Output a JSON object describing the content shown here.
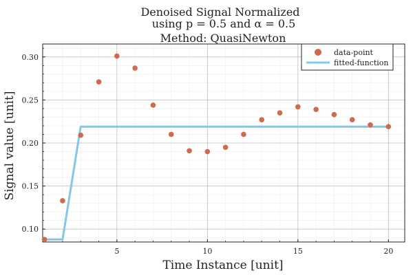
{
  "chart_data": {
    "type": "scatter",
    "title_lines": [
      "Denoised Signal  Normalized",
      "using p = 0.5 and α = 0.5",
      "Method: QuasiNewton"
    ],
    "xlabel": "Time Instance [unit]",
    "ylabel": "Signal value [unit]",
    "xlim": [
      0.9,
      20.9
    ],
    "ylim": [
      0.085,
      0.315
    ],
    "xticks": [
      5,
      10,
      15,
      20
    ],
    "yticks": [
      0.1,
      0.15,
      0.2,
      0.25,
      0.3
    ],
    "ytick_labels": [
      "0.10",
      "0.15",
      "0.20",
      "0.25",
      "0.30"
    ],
    "grid": true,
    "legend_position": "top-right",
    "series": [
      {
        "name": "data-point",
        "kind": "scatter",
        "color": "#d2694b",
        "x": [
          1,
          2,
          3,
          4,
          5,
          6,
          7,
          8,
          9,
          10,
          11,
          12,
          13,
          14,
          15,
          16,
          17,
          18,
          19,
          20
        ],
        "y": [
          0.088,
          0.133,
          0.209,
          0.271,
          0.301,
          0.287,
          0.244,
          0.21,
          0.191,
          0.19,
          0.195,
          0.21,
          0.227,
          0.235,
          0.242,
          0.239,
          0.233,
          0.227,
          0.221,
          0.219
        ]
      },
      {
        "name": "fitted-function",
        "kind": "line",
        "color": "#7fc8ee",
        "x": [
          0.9,
          1,
          2,
          3,
          4,
          5,
          6,
          7,
          8,
          9,
          10,
          11,
          12,
          13,
          14,
          15,
          16,
          17,
          18,
          19,
          20
        ],
        "y": [
          0.088,
          0.088,
          0.088,
          0.219,
          0.219,
          0.219,
          0.219,
          0.219,
          0.219,
          0.219,
          0.219,
          0.219,
          0.219,
          0.219,
          0.219,
          0.219,
          0.219,
          0.219,
          0.219,
          0.219,
          0.219
        ]
      }
    ]
  }
}
